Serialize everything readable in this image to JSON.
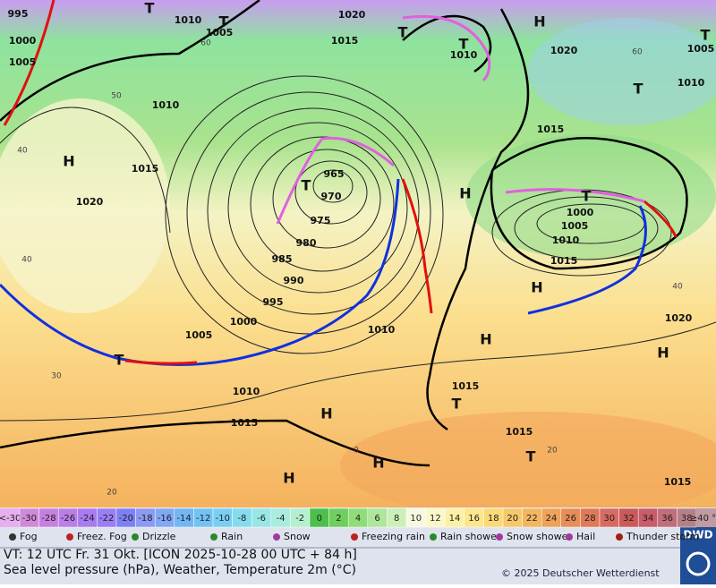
{
  "map": {
    "pressure_labels": [
      "995",
      "1000",
      "1005",
      "1010",
      "1005",
      "1020",
      "1015",
      "1010",
      "1020",
      "1005",
      "1010",
      "1010",
      "1015",
      "1020",
      "965",
      "970",
      "975",
      "980",
      "985",
      "990",
      "995",
      "1000",
      "1005",
      "1010",
      "1015",
      "1000",
      "1005",
      "1010",
      "1015",
      "1020",
      "1010",
      "1015",
      "1015",
      "1015",
      "1015"
    ],
    "pressure_systems": [
      "H",
      "H",
      "H",
      "H",
      "H",
      "H",
      "H",
      "H",
      "H",
      "T",
      "T",
      "T",
      "T",
      "T",
      "T",
      "T",
      "T",
      "T",
      "T",
      "T"
    ],
    "grid_labels": [
      "60",
      "50",
      "40",
      "40",
      "30",
      "20",
      "0",
      "20",
      "40",
      "60"
    ]
  },
  "scale": {
    "low_label": "<-30",
    "high_label": "≥40 °C",
    "low_color": "#e6b0ef",
    "high_color": "#c29aa2",
    "cells": [
      {
        "label": "-30",
        "color": "#d08ad8"
      },
      {
        "label": "-28",
        "color": "#c880e0"
      },
      {
        "label": "-26",
        "color": "#ba7ee8"
      },
      {
        "label": "-24",
        "color": "#a87bf0"
      },
      {
        "label": "-22",
        "color": "#9b7ef4"
      },
      {
        "label": "-20",
        "color": "#7c80f4"
      },
      {
        "label": "-18",
        "color": "#8c9af4"
      },
      {
        "label": "-16",
        "color": "#80a8f4"
      },
      {
        "label": "-14",
        "color": "#74b6f4"
      },
      {
        "label": "-12",
        "color": "#72c3f4"
      },
      {
        "label": "-10",
        "color": "#77d0f2"
      },
      {
        "label": "-8",
        "color": "#86dcef"
      },
      {
        "label": "-6",
        "color": "#99e6e6"
      },
      {
        "label": "-4",
        "color": "#aaece0"
      },
      {
        "label": "-2",
        "color": "#b4f0cf"
      },
      {
        "label": "0",
        "color": "#4cc04c"
      },
      {
        "label": "2",
        "color": "#6ecf5c"
      },
      {
        "label": "4",
        "color": "#90dc78"
      },
      {
        "label": "6",
        "color": "#aee69a"
      },
      {
        "label": "8",
        "color": "#cbefb8"
      },
      {
        "label": "10",
        "color": "#f6f9e0"
      },
      {
        "label": "12",
        "color": "#fbf7c8"
      },
      {
        "label": "14",
        "color": "#fcf0a6"
      },
      {
        "label": "16",
        "color": "#fde68b"
      },
      {
        "label": "18",
        "color": "#fbd977"
      },
      {
        "label": "20",
        "color": "#f7c86a"
      },
      {
        "label": "22",
        "color": "#f2b65f"
      },
      {
        "label": "24",
        "color": "#eda35a"
      },
      {
        "label": "26",
        "color": "#e78d58"
      },
      {
        "label": "28",
        "color": "#df7958"
      },
      {
        "label": "30",
        "color": "#d96a62"
      },
      {
        "label": "32",
        "color": "#cc5a5a"
      },
      {
        "label": "34",
        "color": "#c85c6a"
      },
      {
        "label": "36",
        "color": "#c26d7a"
      },
      {
        "label": "38",
        "color": "#b77f86"
      }
    ]
  },
  "legend": [
    "Fog",
    "Freez. Fog",
    "Drizzle",
    "Rain",
    "Snow",
    "Freezing rain",
    "Rain shower",
    "Snow shower",
    "Hail",
    "Thunder storm"
  ],
  "footer": {
    "valid_time": "VT: 12 UTC Fr.  31 Okt. [ICON 2025-10-28  00 UTC + 84 h]",
    "description": "Sea level pressure (hPa), Weather, Temperature 2m (°C)",
    "copyright": "© 2025 Deutscher Wetterdienst",
    "logo": "DWD"
  }
}
